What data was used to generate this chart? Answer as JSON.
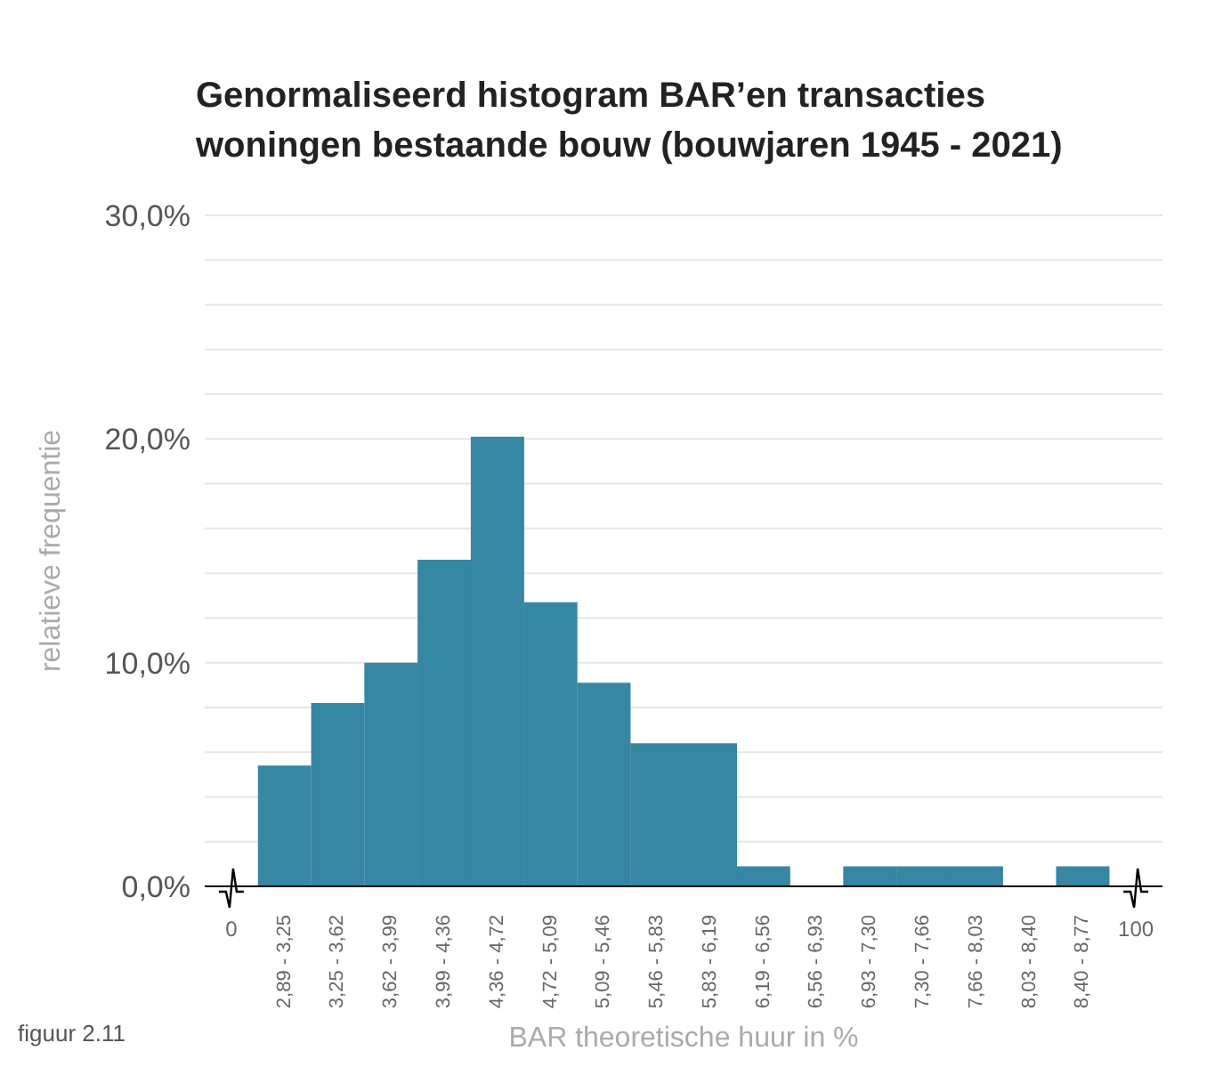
{
  "chart_data": {
    "type": "bar",
    "title": "Genormaliseerd histogram BAR’en transacties woningen bestaande bouw (bouwjaren 1945 - 2021)",
    "xlabel": "BAR theoretische huur in %",
    "ylabel": "relatieve frequentie",
    "annotations": [
      "figuur 2.11"
    ],
    "categories": [
      "0",
      "2,89 - 3,25",
      "3,25 - 3,62",
      "3,62 - 3,99",
      "3,99 - 4,36",
      "4,36 - 4,72",
      "4,72 - 5,09",
      "5,09 - 5,46",
      "5,46 - 5,83",
      "5,83 - 6,19",
      "6,19 - 6,56",
      "6,56 - 6,93",
      "6,93 - 7,30",
      "7,30 - 7,66",
      "7,66 - 8,03",
      "8,03 - 8,40",
      "8,40 - 8,77",
      "100"
    ],
    "values": [
      null,
      5.4,
      8.2,
      10.0,
      14.6,
      20.1,
      12.7,
      9.1,
      6.4,
      6.4,
      0.9,
      0,
      0.9,
      0.9,
      0.9,
      0,
      0.9,
      null
    ],
    "color": "#3587a4",
    "ylim": [
      0,
      30
    ],
    "yticks": [
      {
        "value": 0,
        "label": "0,0%"
      },
      {
        "value": 2,
        "label": null
      },
      {
        "value": 4,
        "label": null
      },
      {
        "value": 6,
        "label": null
      },
      {
        "value": 8,
        "label": null
      },
      {
        "value": 10,
        "label": "10,0%"
      },
      {
        "value": 12,
        "label": null
      },
      {
        "value": 14,
        "label": null
      },
      {
        "value": 16,
        "label": null
      },
      {
        "value": 18,
        "label": null
      },
      {
        "value": 20,
        "label": "20,0%"
      },
      {
        "value": 22,
        "label": null
      },
      {
        "value": 24,
        "label": null
      },
      {
        "value": 26,
        "label": null
      },
      {
        "value": 28,
        "label": null
      },
      {
        "value": 30,
        "label": "30,0%"
      }
    ],
    "grid": "y"
  }
}
